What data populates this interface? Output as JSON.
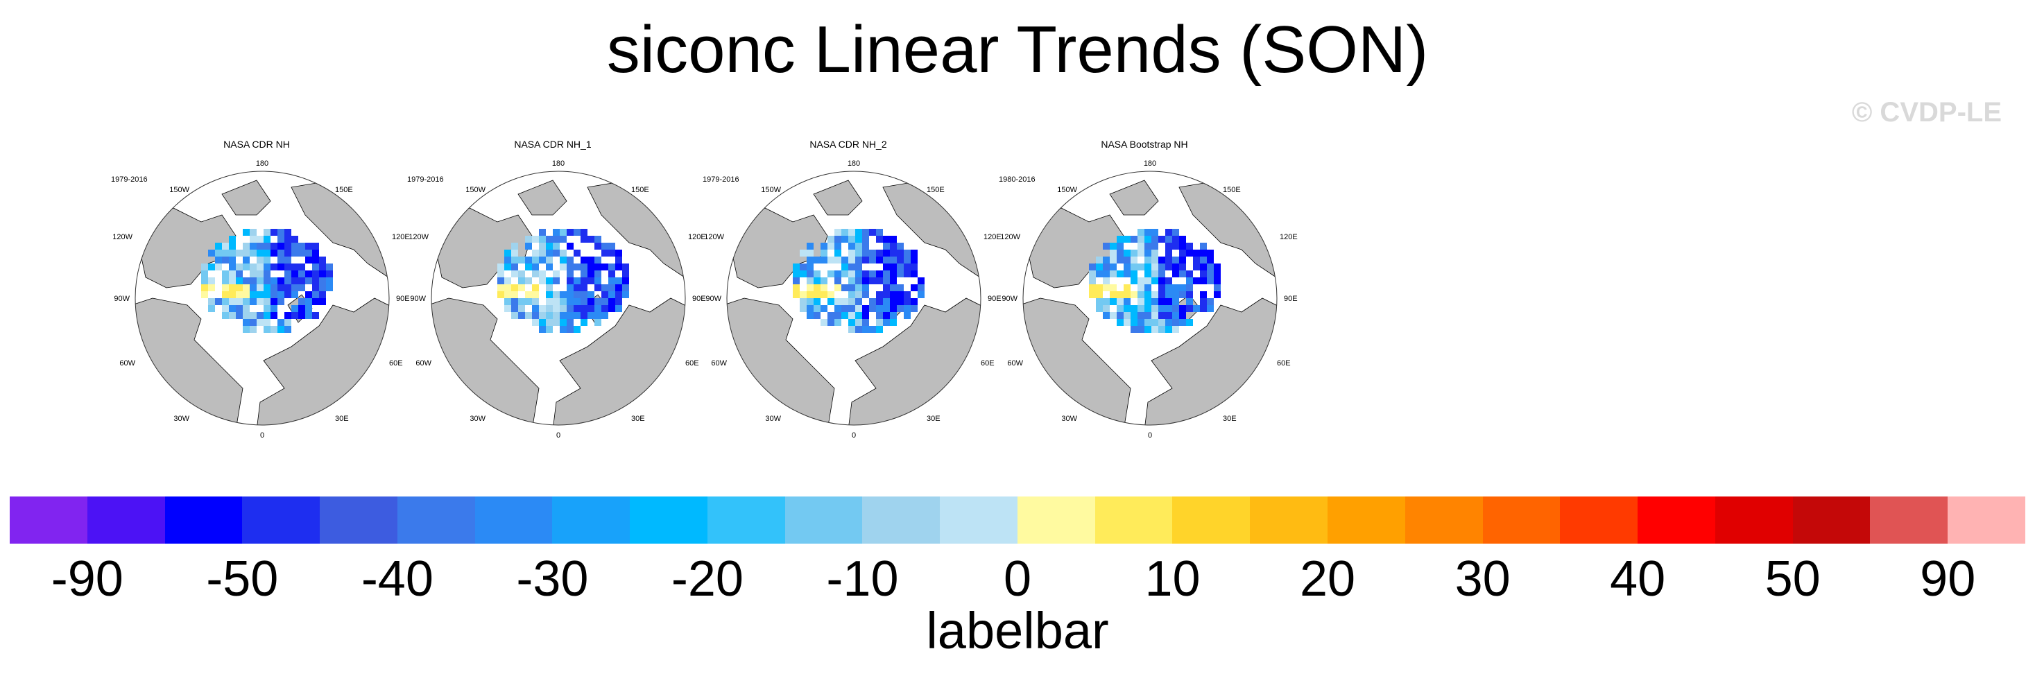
{
  "title": "siconc Linear Trends (SON)",
  "copyright": "© CVDP-LE",
  "map_labels": {
    "north": "180",
    "south": "0",
    "ne1": "150E",
    "ne2": "120E",
    "e": "90E",
    "se1": "60E",
    "se2": "30E",
    "nw1": "150W",
    "nw2": "120W",
    "w": "90W",
    "sw1": "60W",
    "sw2": "30W"
  },
  "panels": [
    {
      "title": "NASA CDR NH",
      "period": "1979-2016"
    },
    {
      "title": "NASA CDR NH_1",
      "period": "1979-2016"
    },
    {
      "title": "NASA CDR NH_2",
      "period": "1979-2016"
    },
    {
      "title": "NASA Bootstrap NH",
      "period": "1980-2016"
    }
  ],
  "colors": {
    "land": "#bdbdbd",
    "labelbar": [
      "#8124f0",
      "#4c12f5",
      "#0000ff",
      "#1e2ef0",
      "#3d5ce0",
      "#3b7aeb",
      "#2b8af5",
      "#18a2fa",
      "#00b9ff",
      "#33c2fa",
      "#73c9f2",
      "#9fd3ee",
      "#bde3f5",
      "#fffaa0",
      "#ffeb5a",
      "#ffd42a",
      "#ffbb12",
      "#ffa000",
      "#ff8400",
      "#ff6400",
      "#ff3a00",
      "#ff0000",
      "#e00000",
      "#c40808",
      "#e05454",
      "#ffb3b3"
    ]
  },
  "labelbar": {
    "tick_labels": [
      "-90",
      "-50",
      "-40",
      "-30",
      "-20",
      "-10",
      "0",
      "10",
      "20",
      "30",
      "40",
      "50",
      "90"
    ],
    "title": "labelbar"
  }
}
